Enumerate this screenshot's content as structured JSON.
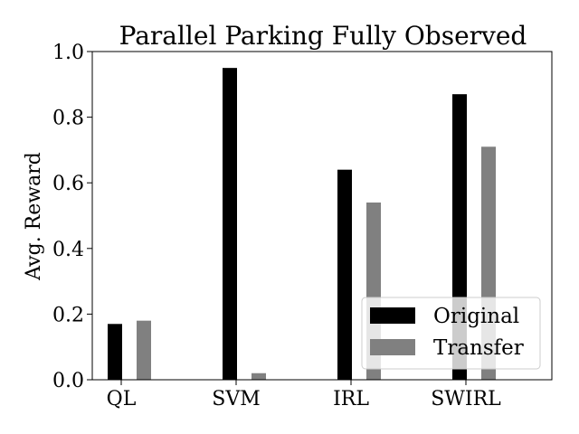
{
  "chart_data": {
    "type": "bar",
    "title": "Parallel Parking Fully Observed",
    "xlabel": "",
    "ylabel": "Avg. Reward",
    "categories": [
      "QL",
      "SVM",
      "IRL",
      "SWIRL"
    ],
    "series": [
      {
        "name": "Original",
        "color": "#000000",
        "values": [
          0.17,
          0.95,
          0.64,
          0.87
        ]
      },
      {
        "name": "Transfer",
        "color": "#808080",
        "values": [
          0.18,
          0.02,
          0.54,
          0.71
        ]
      }
    ],
    "ylim": [
      0,
      1.0
    ],
    "yticks": [
      "0.0",
      "0.2",
      "0.4",
      "0.6",
      "0.8",
      "1.0"
    ],
    "grid": false,
    "legend_position": "lower-right"
  }
}
